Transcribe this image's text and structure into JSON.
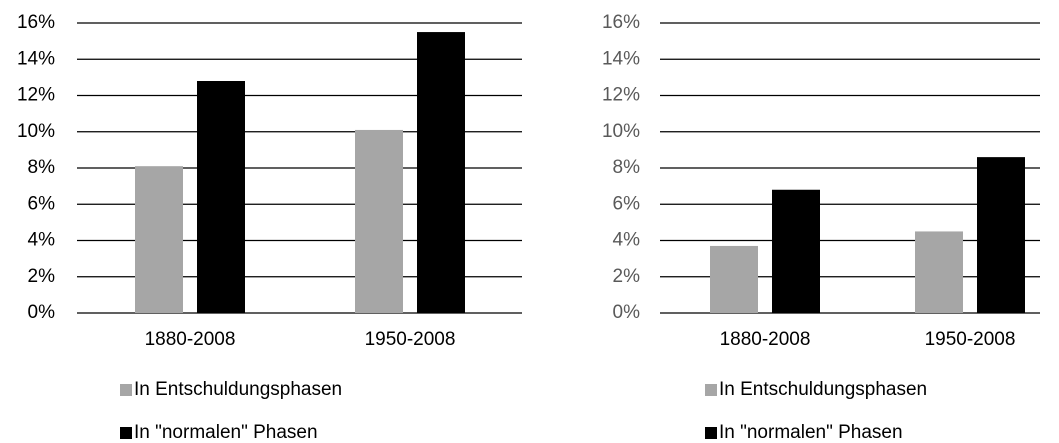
{
  "chart_data": [
    {
      "type": "bar",
      "categories": [
        "1880-2008",
        "1950-2008"
      ],
      "series": [
        {
          "name": "In Entschuldungsphasen",
          "color": "#a6a6a6",
          "values": [
            8.1,
            10.1
          ]
        },
        {
          "name": "In \"normalen\" Phasen",
          "color": "#000000",
          "values": [
            12.8,
            15.5
          ]
        }
      ],
      "ylim": [
        0,
        16
      ],
      "yticks": [
        {
          "value": 0,
          "label": "0%"
        },
        {
          "value": 2,
          "label": "2%"
        },
        {
          "value": 4,
          "label": "4%"
        },
        {
          "value": 6,
          "label": "6%"
        },
        {
          "value": 8,
          "label": "8%"
        },
        {
          "value": 10,
          "label": "10%"
        },
        {
          "value": 12,
          "label": "12%"
        },
        {
          "value": 14,
          "label": "14%"
        },
        {
          "value": 16,
          "label": "16%"
        }
      ],
      "grid": true,
      "tick_color": "#000000"
    },
    {
      "type": "bar",
      "categories": [
        "1880-2008",
        "1950-2008"
      ],
      "series": [
        {
          "name": "In Entschuldungsphasen",
          "color": "#a6a6a6",
          "values": [
            3.7,
            4.5
          ]
        },
        {
          "name": "In \"normalen\" Phasen",
          "color": "#000000",
          "values": [
            6.8,
            8.6
          ]
        }
      ],
      "ylim": [
        0,
        16
      ],
      "yticks": [
        {
          "value": 0,
          "label": "0%"
        },
        {
          "value": 2,
          "label": "2%"
        },
        {
          "value": 4,
          "label": "4%"
        },
        {
          "value": 6,
          "label": "6%"
        },
        {
          "value": 8,
          "label": "8%"
        },
        {
          "value": 10,
          "label": "10%"
        },
        {
          "value": 12,
          "label": "12%"
        },
        {
          "value": 14,
          "label": "14%"
        },
        {
          "value": 16,
          "label": "16%"
        }
      ],
      "grid": true,
      "tick_color": "#595959"
    }
  ]
}
